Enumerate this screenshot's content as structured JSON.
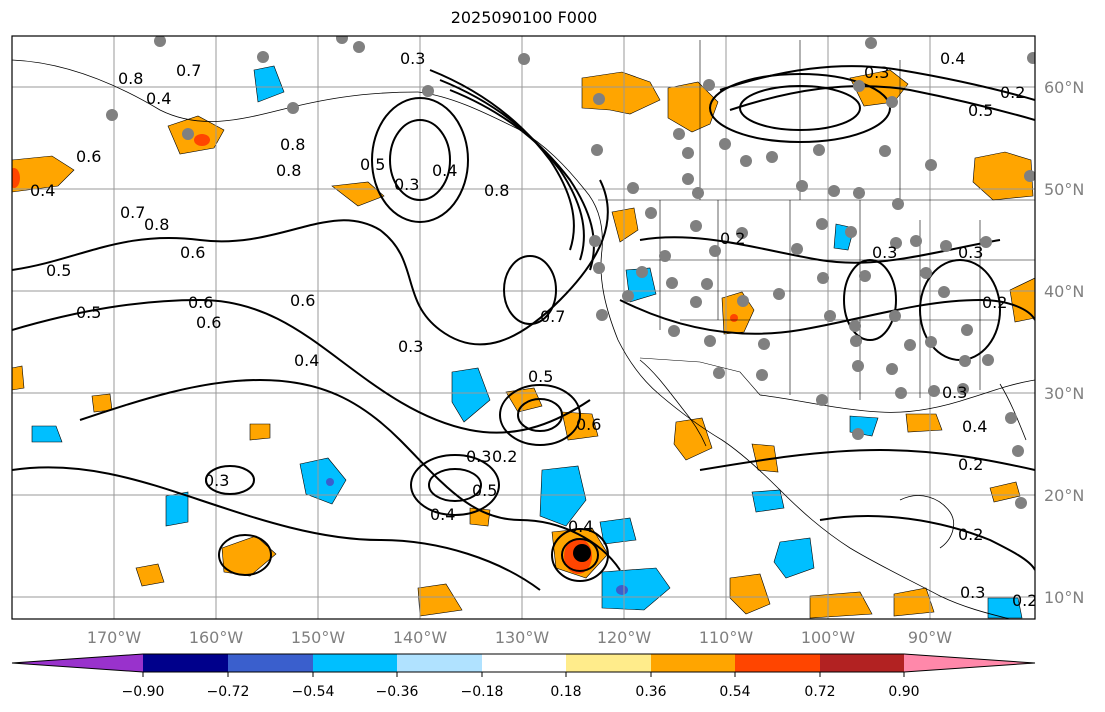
{
  "title": "2025090100 F000",
  "lat_labels": [
    "60°N",
    "50°N",
    "40°N",
    "30°N",
    "20°N",
    "10°N"
  ],
  "lon_labels": [
    "170°W",
    "160°W",
    "150°W",
    "140°W",
    "130°W",
    "120°W",
    "110°W",
    "100°W",
    "90°W"
  ],
  "colorbar": {
    "tick_labels": [
      "−0.90",
      "−0.72",
      "−0.54",
      "−0.36",
      "−0.18",
      "0.18",
      "0.36",
      "0.54",
      "0.72",
      "0.90"
    ],
    "colors": [
      "#9932cc",
      "#00008b",
      "#3a5fcd",
      "#00bfff",
      "#b0e2ff",
      "#ffffff",
      "#ffec8b",
      "#ffa500",
      "#ff4500",
      "#b22222",
      "#ff88aa"
    ]
  },
  "colors": {
    "positive_shade": "#ffa500",
    "positive_strong": "#ff4500",
    "negative_shade": "#00bfff",
    "negative_strong": "#3a5fcd",
    "station_dot": "#808080",
    "storm_center": "#000000",
    "grid": "#999999"
  },
  "contour_labels": [
    "0.3",
    "0.8",
    "0.7",
    "0.4",
    "0.6",
    "0.8",
    "0.5",
    "0.3",
    "0.4",
    "0.8",
    "0.4",
    "0.8",
    "0.6",
    "0.7",
    "0.8",
    "0.5",
    "0.6",
    "0.5",
    "0.6",
    "0.6",
    "0.4",
    "0.3",
    "0.7",
    "0.5",
    "0.6",
    "0.3",
    "0.2",
    "0.5",
    "0.4",
    "0.3",
    "0.4",
    "0.2",
    "0.3",
    "0.2",
    "0.3",
    "0.3",
    "0.4",
    "0.2",
    "0.2",
    "0.2",
    "0.3",
    "0.3",
    "0.5",
    "0.4",
    "0.2"
  ]
}
